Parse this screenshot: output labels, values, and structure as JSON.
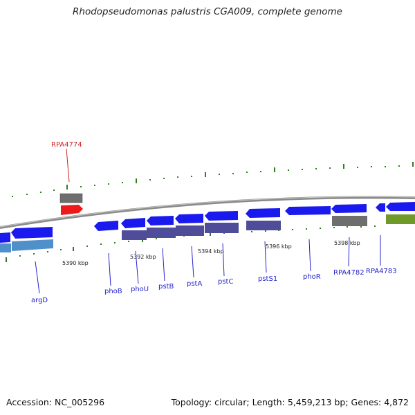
{
  "title": "Rhodopseudomonas palustris CGA009, complete genome",
  "footer": {
    "accession": "Accession: NC_005296",
    "summary": "Topology: circular; Length: 5,459,213 bp; Genes: 4,872"
  },
  "colors": {
    "backbone": "#8a8a8a",
    "gene_blue": "#1a1aee",
    "gene_gray": "#6e6e6e",
    "gene_red": "#ee1a1a",
    "gene_olive": "#6f9a2a",
    "cds_purple": "#4f4c9a",
    "cds_lightblue": "#4f8fca",
    "tick_green": "#2f7d1f",
    "label_blue": "#2222cc",
    "label_red": "#cc2222"
  },
  "ticks": {
    "top_labels": [
      "5390 kbp",
      "5392 kbp",
      "5394 kbp",
      "5396 kbp",
      "5398 kbp"
    ]
  },
  "genes": {
    "argD": "argD",
    "phoB": "phoB",
    "phoU": "phoU",
    "pstB": "pstB",
    "pstA": "pstA",
    "pstC": "pstC",
    "pstS1": "pstS1",
    "phoR": "phoR",
    "RPA4782": "RPA4782",
    "RPA4783": "RPA4783",
    "RPA4774": "RPA4774"
  }
}
